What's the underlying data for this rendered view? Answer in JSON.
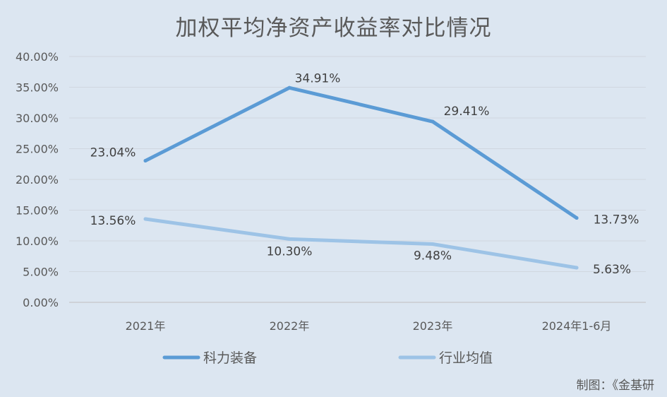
{
  "chart_data": {
    "type": "line",
    "title": "加权平均净资产收益率对比情况",
    "categories": [
      "2021年",
      "2022年",
      "2023年",
      "2024年1-6月"
    ],
    "series": [
      {
        "name": "科力装备",
        "values": [
          23.04,
          34.91,
          29.41,
          13.73
        ],
        "labels": [
          "23.04%",
          "34.91%",
          "29.41%",
          "13.73%"
        ],
        "color": "#5b9bd5"
      },
      {
        "name": "行业均值",
        "values": [
          13.56,
          10.3,
          9.48,
          5.63
        ],
        "labels": [
          "13.56%",
          "10.30%",
          "9.48%",
          "5.63%"
        ],
        "color": "#9dc3e6"
      }
    ],
    "yticks": [
      "0.00%",
      "5.00%",
      "10.00%",
      "15.00%",
      "20.00%",
      "25.00%",
      "30.00%",
      "35.00%",
      "40.00%"
    ],
    "ylim": [
      0,
      40
    ],
    "grid": true,
    "legend": "bottom"
  },
  "credit": "制图：《金基研"
}
